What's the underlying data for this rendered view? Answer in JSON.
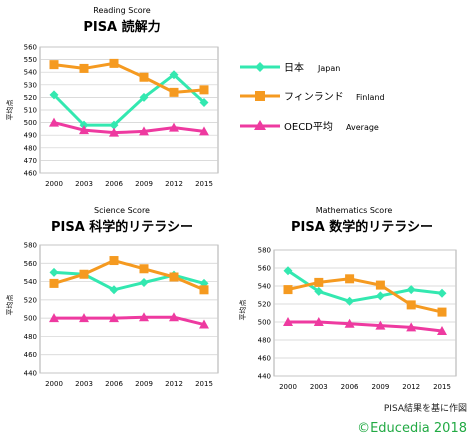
{
  "chart_data": [
    {
      "id": "reading",
      "type": "line",
      "subtitle": "Reading Score",
      "title": "PISA 読解力",
      "ylabel": "平均点",
      "x": [
        "2000",
        "2003",
        "2006",
        "2009",
        "2012",
        "2015"
      ],
      "ylim": [
        460,
        560
      ],
      "yticks": [
        460,
        470,
        480,
        490,
        500,
        510,
        520,
        530,
        540,
        550,
        560
      ],
      "grid": true,
      "series": [
        {
          "name": "日本",
          "color": "#33e8b0",
          "marker": "diamond",
          "values": [
            522,
            498,
            498,
            520,
            538,
            516
          ]
        },
        {
          "name": "フィンランド",
          "color": "#f59a20",
          "marker": "square",
          "values": [
            546,
            543,
            547,
            536,
            524,
            526
          ]
        },
        {
          "name": "OECD平均",
          "color": "#ee3aa0",
          "marker": "triangle",
          "values": [
            500,
            494,
            492,
            493,
            496,
            493
          ]
        }
      ]
    },
    {
      "id": "science",
      "type": "line",
      "subtitle": "Science Score",
      "title": "PISA 科学的リテラシー",
      "ylabel": "平均点",
      "x": [
        "2000",
        "2003",
        "2006",
        "2009",
        "2012",
        "2015"
      ],
      "ylim": [
        440,
        580
      ],
      "yticks": [
        440,
        460,
        480,
        500,
        520,
        540,
        560,
        580
      ],
      "grid": true,
      "series": [
        {
          "name": "日本",
          "color": "#33e8b0",
          "marker": "diamond",
          "values": [
            550,
            548,
            531,
            539,
            547,
            538
          ]
        },
        {
          "name": "フィンランド",
          "color": "#f59a20",
          "marker": "square",
          "values": [
            538,
            548,
            563,
            554,
            545,
            531
          ]
        },
        {
          "name": "OECD平均",
          "color": "#ee3aa0",
          "marker": "triangle",
          "values": [
            500,
            500,
            500,
            501,
            501,
            493
          ]
        }
      ]
    },
    {
      "id": "math",
      "type": "line",
      "subtitle": "Mathematics Score",
      "title": "PISA 数学的リテラシー",
      "ylabel": "平均点",
      "x": [
        "2000",
        "2003",
        "2006",
        "2009",
        "2012",
        "2015"
      ],
      "ylim": [
        440,
        580
      ],
      "yticks": [
        440,
        460,
        480,
        500,
        520,
        540,
        560,
        580
      ],
      "grid": true,
      "series": [
        {
          "name": "日本",
          "color": "#33e8b0",
          "marker": "diamond",
          "values": [
            557,
            534,
            523,
            529,
            536,
            532
          ]
        },
        {
          "name": "フィンランド",
          "color": "#f59a20",
          "marker": "square",
          "values": [
            536,
            544,
            548,
            541,
            519,
            511
          ]
        },
        {
          "name": "OECD平均",
          "color": "#ee3aa0",
          "marker": "triangle",
          "values": [
            500,
            500,
            498,
            496,
            494,
            490
          ]
        }
      ]
    }
  ],
  "legend": {
    "placement": "top-right",
    "items": [
      {
        "label": "日本",
        "label_en": "Japan",
        "color": "#33e8b0",
        "marker": "diamond"
      },
      {
        "label": "フィンランド",
        "label_en": "Finland",
        "color": "#f59a20",
        "marker": "square"
      },
      {
        "label": "OECD平均",
        "label_en": "Average",
        "color": "#ee3aa0",
        "marker": "triangle"
      }
    ]
  },
  "footer": {
    "source": "PISA結果を基に作図",
    "copyright": "©Educedia 2018"
  }
}
